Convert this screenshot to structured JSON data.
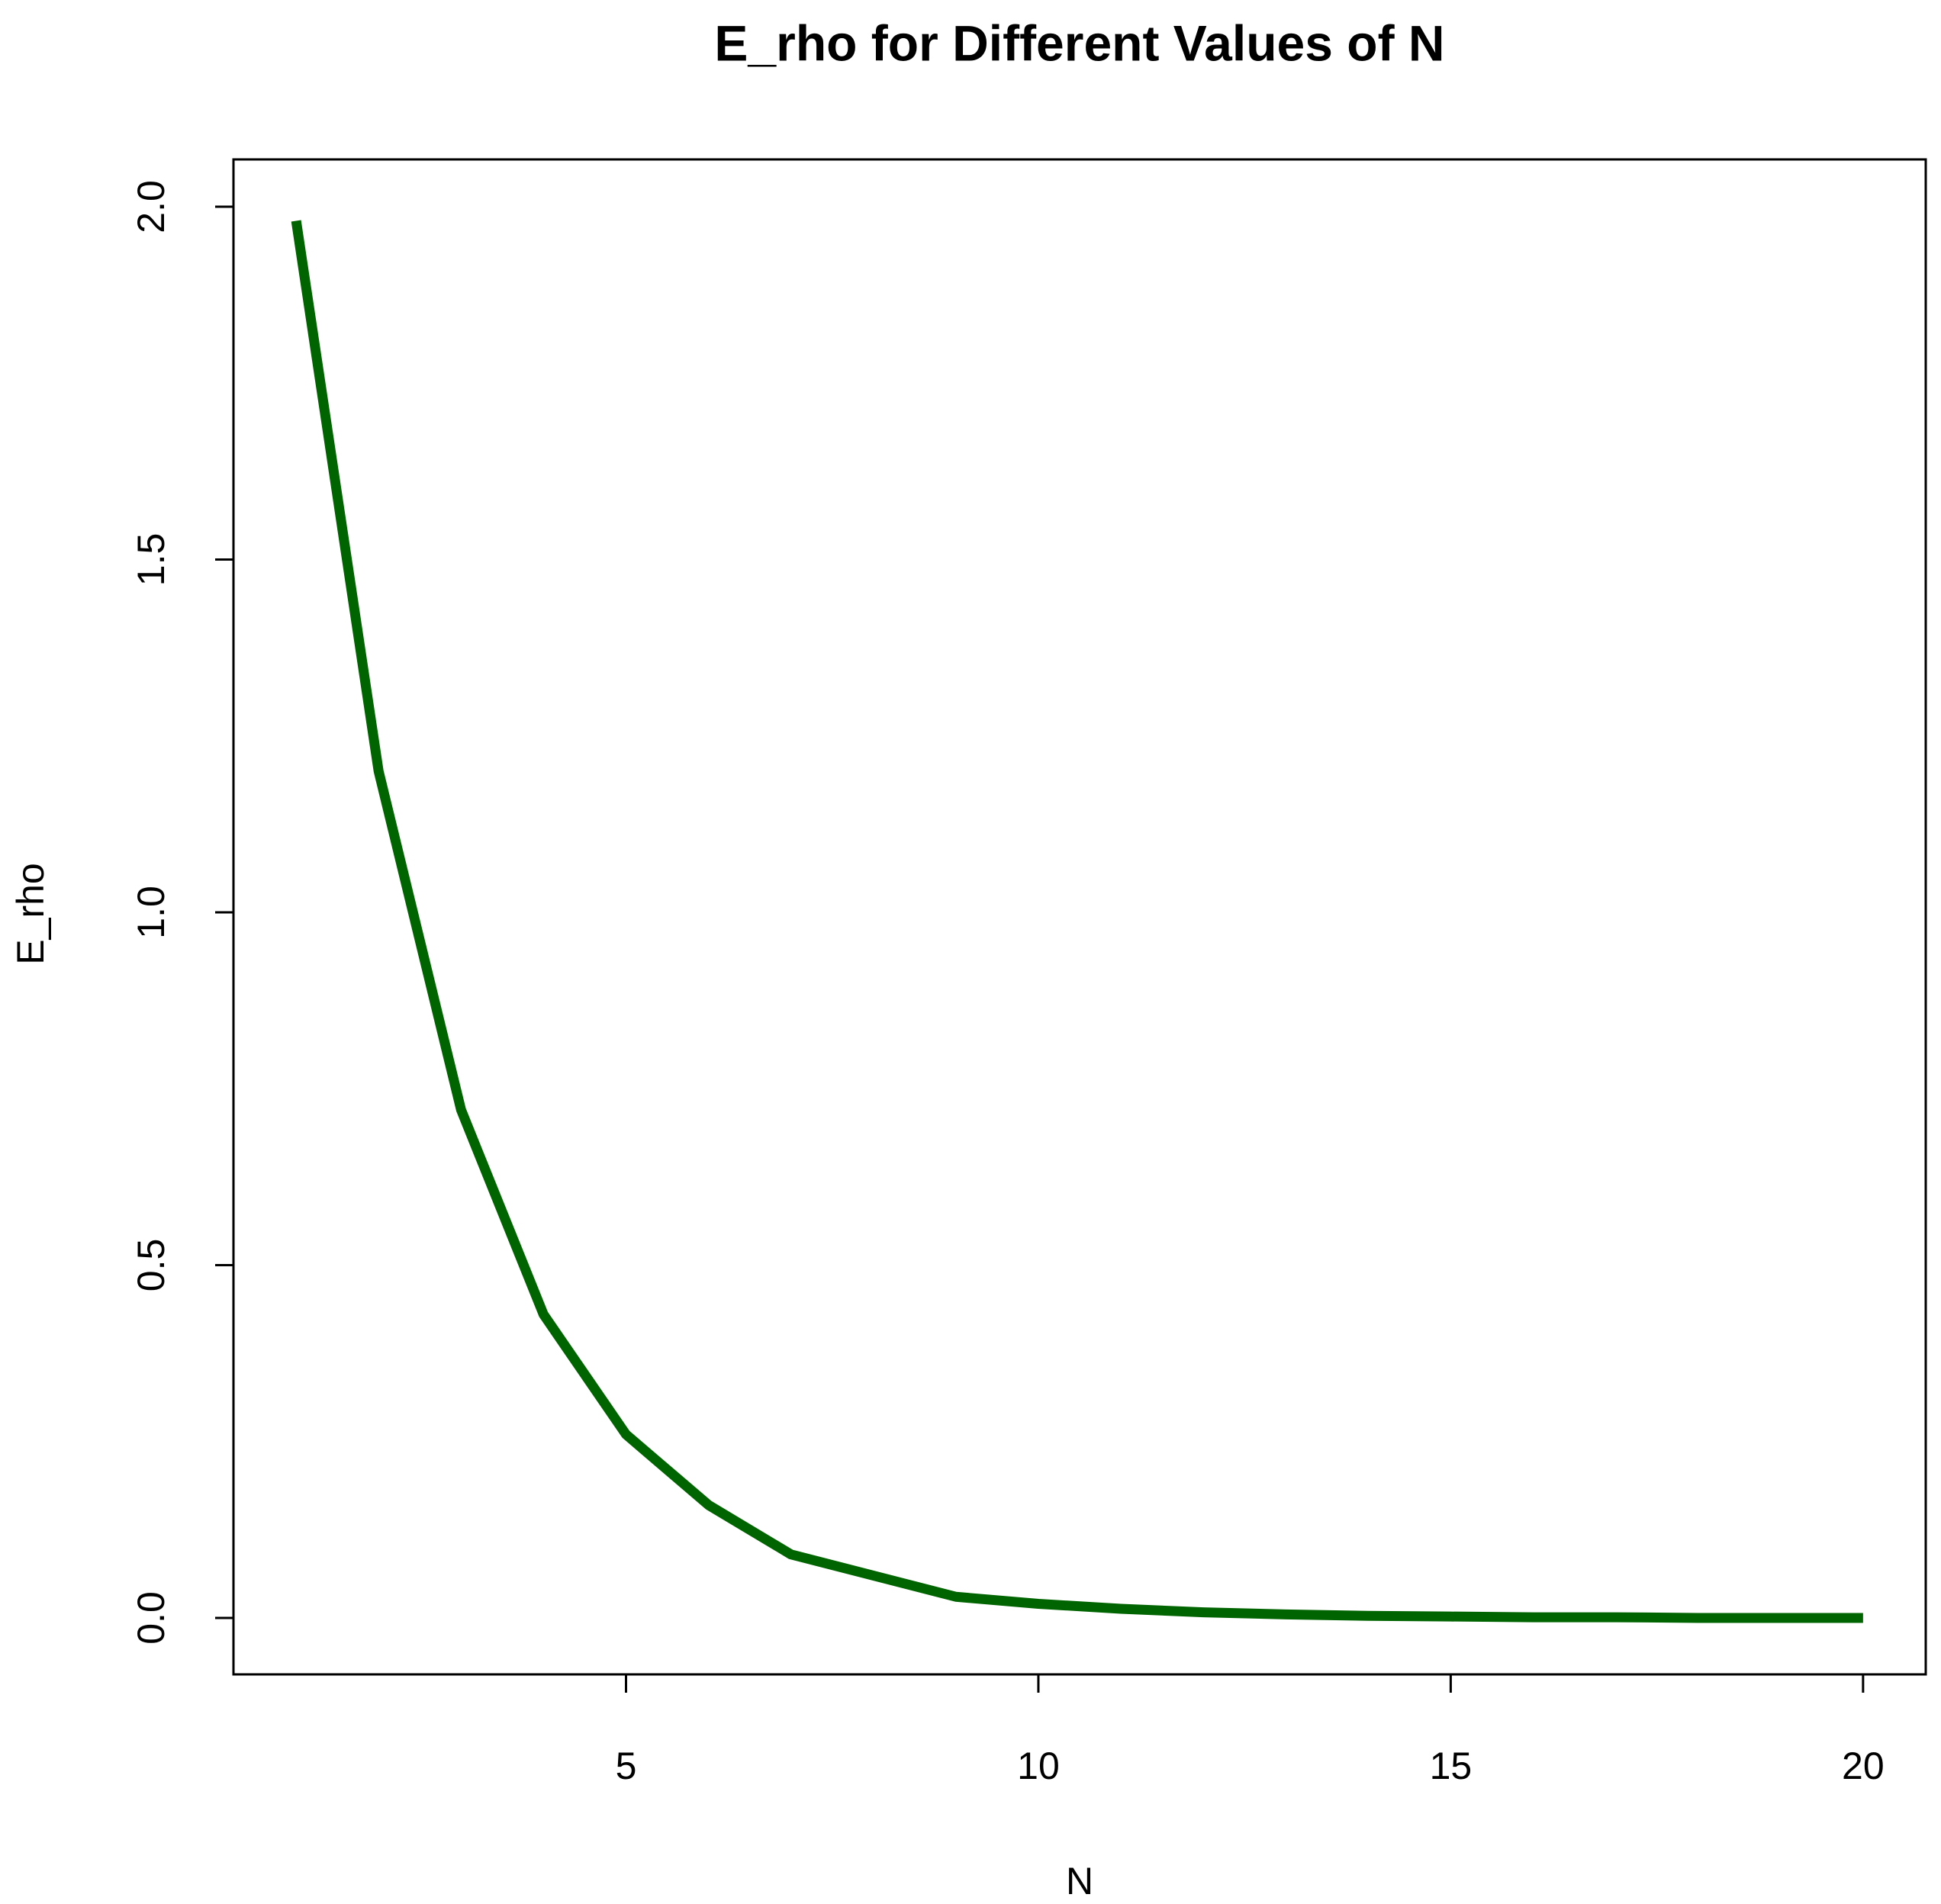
{
  "chart_data": {
    "type": "line",
    "title": "E_rho for Different Values of N",
    "x_label": "N",
    "y_label": "E_rho",
    "x": [
      1,
      2,
      3,
      4,
      5,
      6,
      7,
      8,
      9,
      10,
      11,
      12,
      13,
      14,
      15,
      16,
      17,
      18,
      19,
      20
    ],
    "series": [
      {
        "name": "E_rho",
        "color": "#006400",
        "values": [
          1.98,
          1.2,
          0.72,
          0.43,
          0.26,
          0.16,
          0.09,
          0.06,
          0.03,
          0.02,
          0.013,
          0.008,
          0.005,
          0.003,
          0.002,
          0.001,
          0.001,
          0,
          0,
          0
        ]
      }
    ],
    "xlim": [
      0.24,
      20.76
    ],
    "ylim": [
      -0.08,
      2.067
    ],
    "xticks": [
      5,
      10,
      15,
      20
    ],
    "yticks": [
      {
        "value": 0,
        "label": "0.0"
      },
      0.5,
      {
        "value": 1,
        "label": "1.0"
      },
      1.5,
      {
        "value": 2,
        "label": "2.0"
      }
    ]
  }
}
